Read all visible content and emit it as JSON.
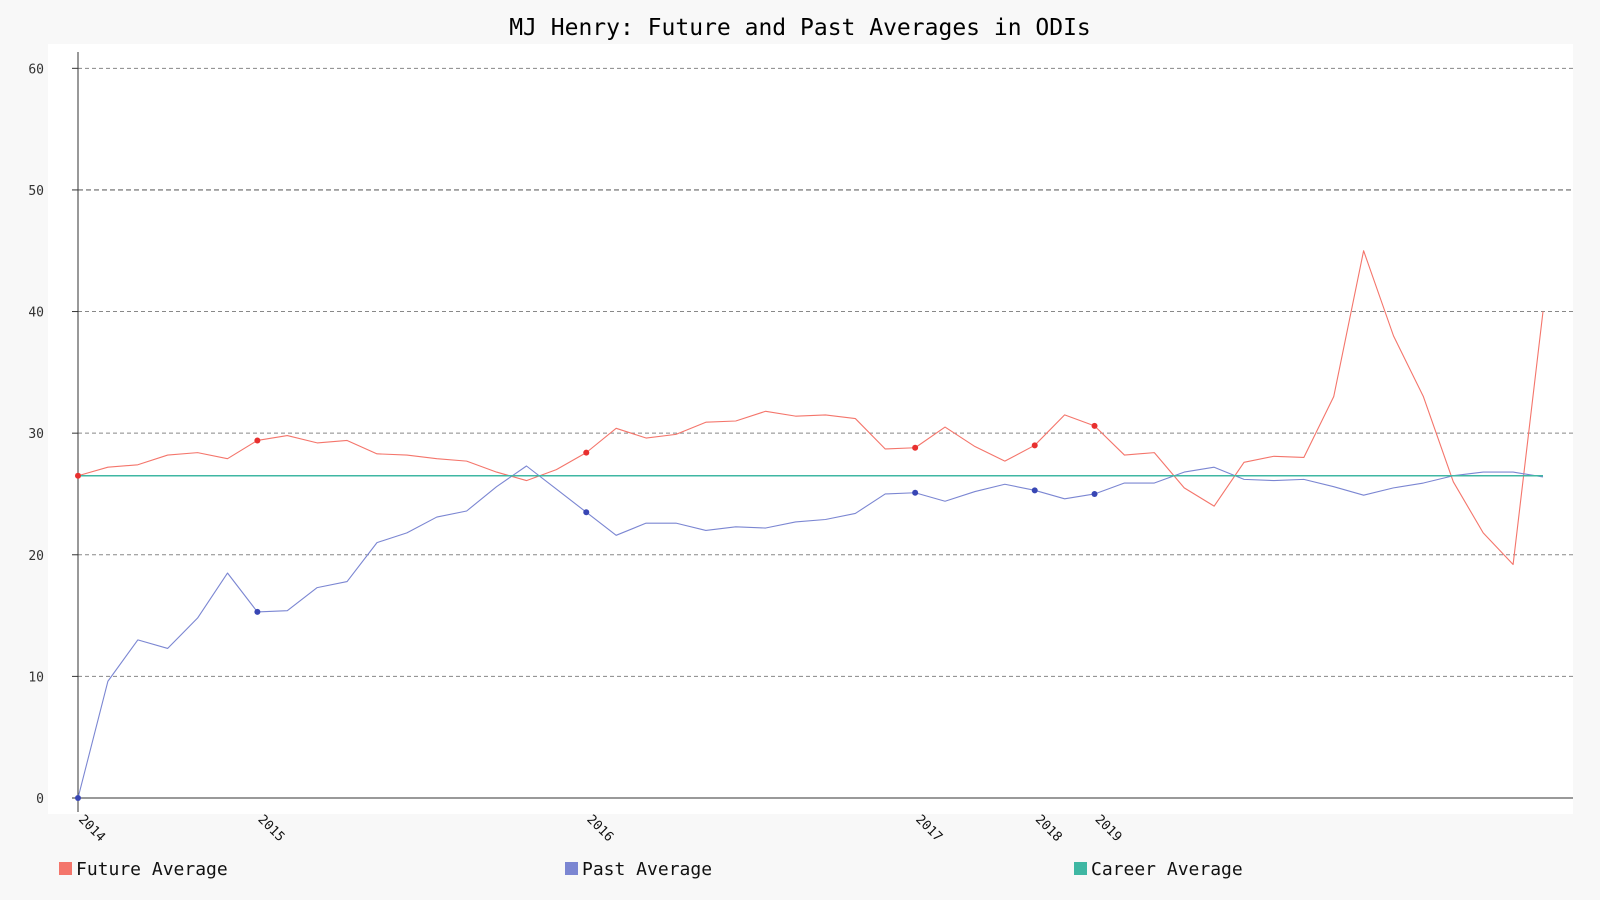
{
  "chart_data": {
    "type": "line",
    "title": "MJ Henry: Future and Past Averages in ODIs",
    "ylim": [
      0,
      62
    ],
    "yticks": [
      0,
      10,
      20,
      30,
      40,
      50,
      60
    ],
    "xtick_labels": [
      {
        "index": 0,
        "label": "2014"
      },
      {
        "index": 6,
        "label": "2015"
      },
      {
        "index": 17,
        "label": "2016"
      },
      {
        "index": 28,
        "label": "2017"
      },
      {
        "index": 32,
        "label": "2018"
      },
      {
        "index": 34,
        "label": "2019"
      }
    ],
    "grid": true,
    "legend_position": "bottom",
    "series": [
      {
        "name": "Future Average",
        "color": "#f4756b",
        "marker_color": "#e8302f",
        "markers_at": [
          0,
          6,
          17,
          28,
          32,
          34
        ],
        "values": [
          26.5,
          27.2,
          27.4,
          28.2,
          28.4,
          27.9,
          29.4,
          29.8,
          29.2,
          29.4,
          28.3,
          28.2,
          27.9,
          27.7,
          26.8,
          26.1,
          27.0,
          28.4,
          30.4,
          29.6,
          29.9,
          30.9,
          31.0,
          31.8,
          31.4,
          31.5,
          31.2,
          28.7,
          28.8,
          30.5,
          28.9,
          27.7,
          29.0,
          31.5,
          30.6,
          28.2,
          28.4,
          25.5,
          24.0,
          27.6,
          28.1,
          28.0,
          33.0,
          45.0,
          38.0,
          33.0,
          26.0,
          21.8,
          19.2,
          40.0
        ]
      },
      {
        "name": "Past Average",
        "color": "#7b86d2",
        "marker_color": "#3846b4",
        "markers_at": [
          0,
          6,
          17,
          28,
          32,
          34
        ],
        "values": [
          0,
          9.6,
          13.0,
          12.3,
          14.8,
          18.5,
          15.3,
          15.4,
          17.3,
          17.8,
          21.0,
          21.8,
          23.1,
          23.6,
          25.6,
          27.3,
          25.4,
          23.5,
          21.6,
          22.6,
          22.6,
          22.0,
          22.3,
          22.2,
          22.7,
          22.9,
          23.4,
          25.0,
          25.1,
          24.4,
          25.2,
          25.8,
          25.3,
          24.6,
          25.0,
          25.9,
          25.9,
          26.8,
          27.2,
          26.2,
          26.1,
          26.2,
          25.6,
          24.9,
          25.5,
          25.9,
          26.5,
          26.8,
          26.8,
          26.4
        ]
      },
      {
        "name": "Career Average",
        "color": "#3fb7a3",
        "values": [
          26.5,
          26.5,
          26.5,
          26.5,
          26.5,
          26.5,
          26.5,
          26.5,
          26.5,
          26.5,
          26.5,
          26.5,
          26.5,
          26.5,
          26.5,
          26.5,
          26.5,
          26.5,
          26.5,
          26.5,
          26.5,
          26.5,
          26.5,
          26.5,
          26.5,
          26.5,
          26.5,
          26.5,
          26.5,
          26.5,
          26.5,
          26.5,
          26.5,
          26.5,
          26.5,
          26.5,
          26.5,
          26.5,
          26.5,
          26.5,
          26.5,
          26.5,
          26.5,
          26.5,
          26.5,
          26.5,
          26.5,
          26.5,
          26.5,
          26.5
        ]
      }
    ]
  }
}
